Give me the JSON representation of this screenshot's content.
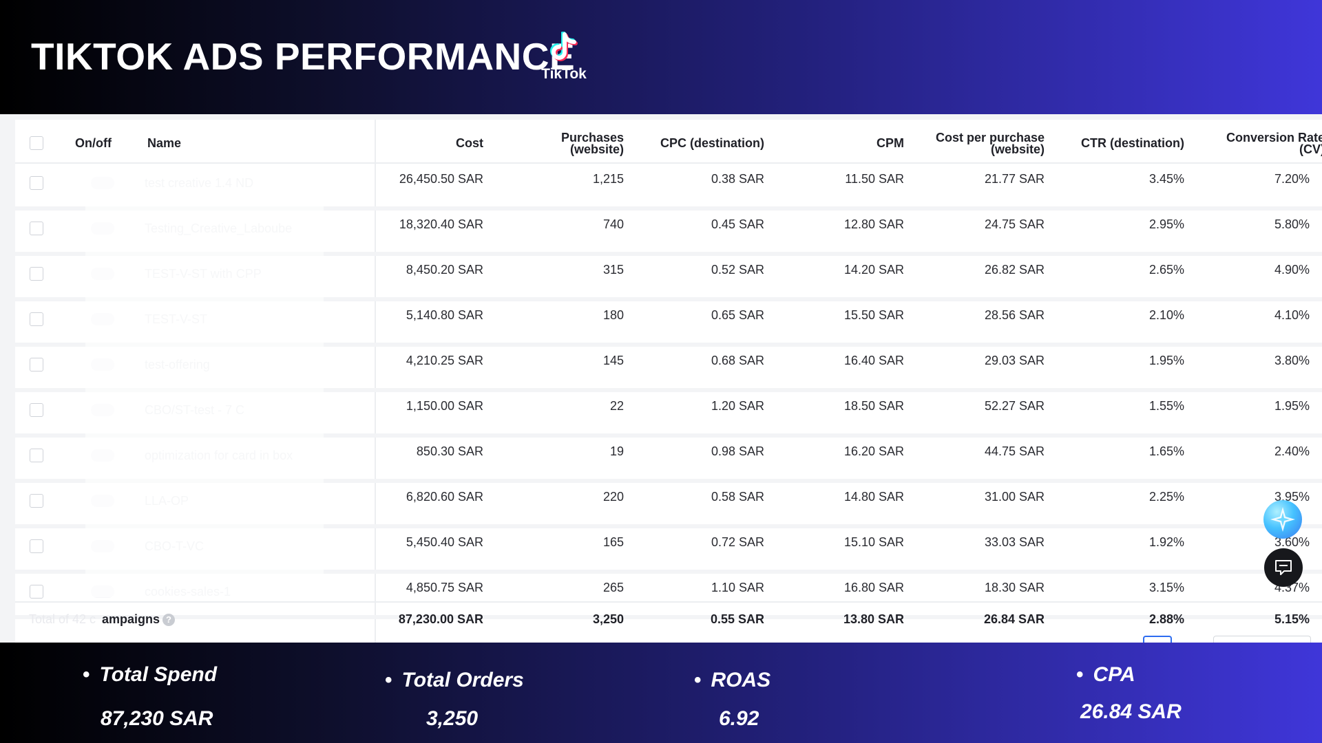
{
  "header": {
    "title": "TIKTOK ADS PERFORMANCE",
    "logo_text": "TikTok"
  },
  "table": {
    "columns": {
      "onoff": "On/off",
      "name": "Name",
      "cost": "Cost",
      "purchases": [
        "Purchases",
        "(website)"
      ],
      "cpc": "CPC (destination)",
      "cpm": "CPM",
      "cpp": [
        "Cost per purchase",
        "(website)"
      ],
      "ctr": "CTR (destination)",
      "cvr": [
        "Conversion Rate",
        "(CV)"
      ]
    },
    "rows": [
      {
        "name": "test creative 1.4 ND",
        "cost": "26,450.50 SAR",
        "purchases": "1,215",
        "cpc": "0.38 SAR",
        "cpm": "11.50 SAR",
        "cpp": "21.77 SAR",
        "ctr": "3.45%",
        "cvr": "7.20%"
      },
      {
        "name": "Testing_Creative_Laboube",
        "cost": "18,320.40 SAR",
        "purchases": "740",
        "cpc": "0.45 SAR",
        "cpm": "12.80 SAR",
        "cpp": "24.75 SAR",
        "ctr": "2.95%",
        "cvr": "5.80%"
      },
      {
        "name": "TEST-V-ST with CPP",
        "cost": "8,450.20 SAR",
        "purchases": "315",
        "cpc": "0.52 SAR",
        "cpm": "14.20 SAR",
        "cpp": "26.82 SAR",
        "ctr": "2.65%",
        "cvr": "4.90%"
      },
      {
        "name": "TEST-V-ST",
        "cost": "5,140.80 SAR",
        "purchases": "180",
        "cpc": "0.65 SAR",
        "cpm": "15.50 SAR",
        "cpp": "28.56 SAR",
        "ctr": "2.10%",
        "cvr": "4.10%"
      },
      {
        "name": "test-offering",
        "cost": "4,210.25 SAR",
        "purchases": "145",
        "cpc": "0.68 SAR",
        "cpm": "16.40 SAR",
        "cpp": "29.03 SAR",
        "ctr": "1.95%",
        "cvr": "3.80%"
      },
      {
        "name": "CBO/ST-test - 7 C",
        "cost": "1,150.00 SAR",
        "purchases": "22",
        "cpc": "1.20 SAR",
        "cpm": "18.50 SAR",
        "cpp": "52.27 SAR",
        "ctr": "1.55%",
        "cvr": "1.95%"
      },
      {
        "name": "optimization for card in box",
        "cost": "850.30 SAR",
        "purchases": "19",
        "cpc": "0.98 SAR",
        "cpm": "16.20 SAR",
        "cpp": "44.75 SAR",
        "ctr": "1.65%",
        "cvr": "2.40%"
      },
      {
        "name": "LLA-OP",
        "cost": "6,820.60 SAR",
        "purchases": "220",
        "cpc": "0.58 SAR",
        "cpm": "14.80 SAR",
        "cpp": "31.00 SAR",
        "ctr": "2.25%",
        "cvr": "3.95%"
      },
      {
        "name": "CBO-T-VC",
        "cost": "5,450.40 SAR",
        "purchases": "165",
        "cpc": "0.72 SAR",
        "cpm": "15.10 SAR",
        "cpp": "33.03 SAR",
        "ctr": "1.92%",
        "cvr": "3.60%"
      },
      {
        "name": "cookies-sales-1",
        "cost": "4,850.75 SAR",
        "purchases": "265",
        "cpc": "1.10 SAR",
        "cpm": "16.80 SAR",
        "cpp": "18.30 SAR",
        "ctr": "3.15%",
        "cvr": "4.37%"
      }
    ],
    "total": {
      "prefix": "Total of 42 c",
      "label": "ampaigns",
      "help": "?",
      "cost": "87,230.00 SAR",
      "purchases": "3,250",
      "cpc": "0.55 SAR",
      "cpm": "13.80 SAR",
      "cpp": "26.84 SAR",
      "ctr": "2.88%",
      "cvr": "5.15%"
    }
  },
  "kpis": [
    {
      "label": "Total Spend",
      "value": "87,230 SAR"
    },
    {
      "label": "Total Orders",
      "value": "3,250"
    },
    {
      "label": "ROAS",
      "value": "6.92"
    },
    {
      "label": "CPA",
      "value": "26.84 SAR"
    }
  ],
  "colors": {
    "header_start": "#000000",
    "header_end": "#3f36d9",
    "tiktok_cyan": "#25f4ee",
    "tiktok_red": "#fe2c55"
  },
  "icons": {
    "logo": "tiktok-note-icon",
    "assistant": "sparkle-star-icon",
    "chat": "chat-bubble-icon"
  }
}
